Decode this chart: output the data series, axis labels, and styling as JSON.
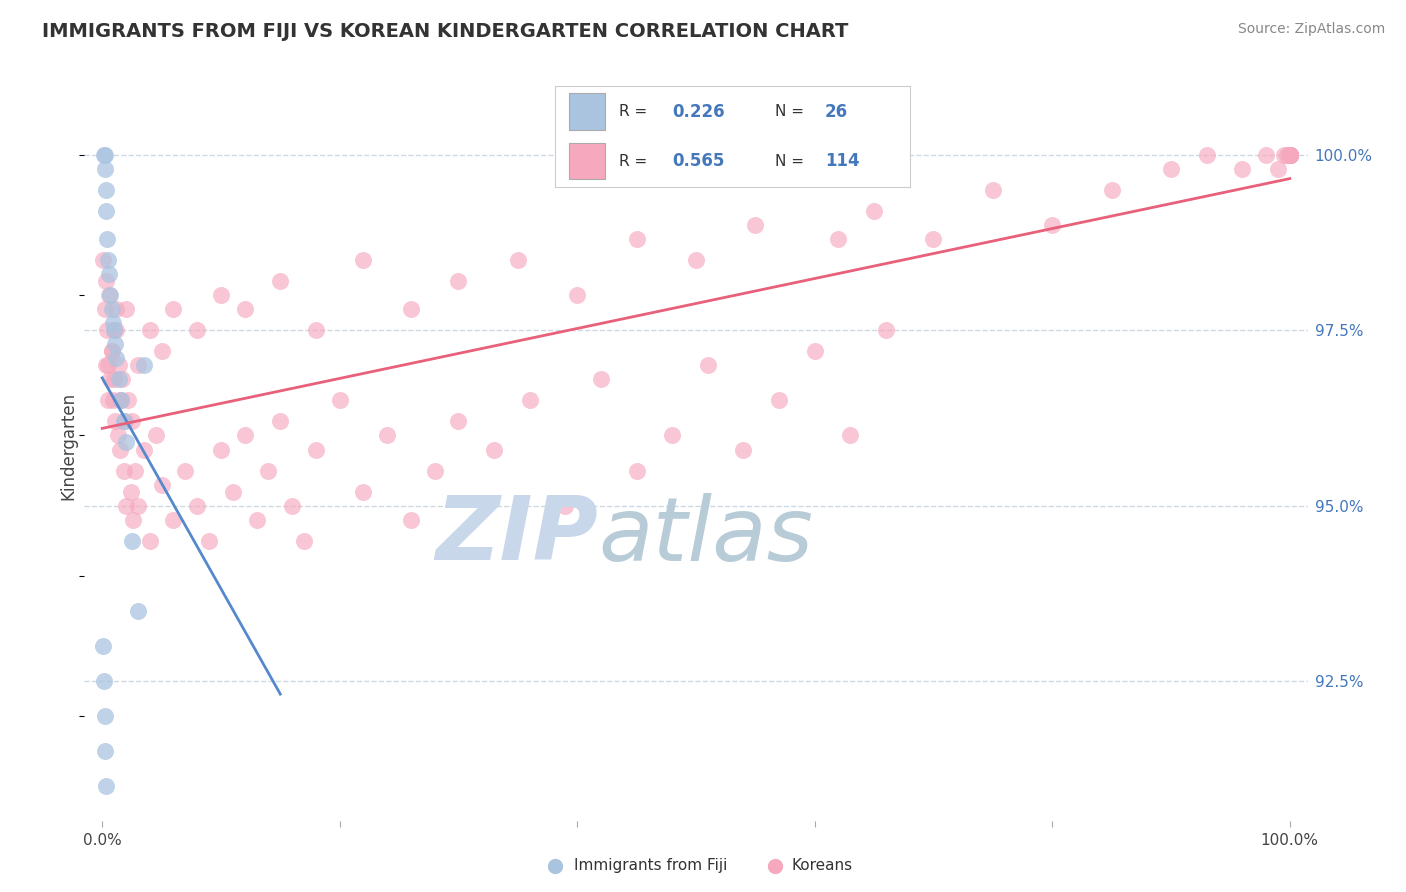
{
  "title": "IMMIGRANTS FROM FIJI VS KOREAN KINDERGARTEN CORRELATION CHART",
  "source_text": "Source: ZipAtlas.com",
  "ylabel": "Kindergarten",
  "xlim": [
    -1.5,
    101.5
  ],
  "ylim": [
    90.5,
    101.2
  ],
  "right_yticks": [
    92.5,
    95.0,
    97.5,
    100.0
  ],
  "fiji_R": 0.226,
  "fiji_N": 26,
  "korean_R": 0.565,
  "korean_N": 114,
  "fiji_color": "#aac4e0",
  "korean_color": "#f5a8be",
  "fiji_line_color": "#5588cc",
  "korean_line_color": "#e8607a",
  "dashed_color": "#c8d4e0",
  "background_color": "#ffffff",
  "watermark_zip": "ZIP",
  "watermark_atlas": "atlas",
  "watermark_color_zip": "#c8d8ea",
  "watermark_color_atlas": "#b8ccd8",
  "legend_color": "#4477bb",
  "fiji_x": [
    0.15,
    0.2,
    0.25,
    0.3,
    0.35,
    0.4,
    0.5,
    0.6,
    0.7,
    0.8,
    0.9,
    1.0,
    1.1,
    1.2,
    1.4,
    1.6,
    1.8,
    2.0,
    2.5,
    3.0,
    0.1,
    0.15,
    0.2,
    0.25,
    0.3,
    3.5
  ],
  "fiji_y": [
    100.0,
    100.0,
    99.8,
    99.5,
    99.2,
    98.8,
    98.5,
    98.3,
    98.0,
    97.8,
    97.6,
    97.5,
    97.3,
    97.1,
    96.8,
    96.5,
    96.2,
    95.9,
    94.5,
    93.5,
    93.0,
    92.5,
    92.0,
    91.5,
    91.0,
    97.0
  ],
  "korean_x": [
    0.1,
    0.2,
    0.3,
    0.4,
    0.5,
    0.6,
    0.7,
    0.8,
    0.9,
    1.0,
    1.1,
    1.2,
    1.3,
    1.4,
    1.5,
    1.6,
    1.7,
    1.8,
    1.9,
    2.0,
    2.2,
    2.4,
    2.6,
    2.8,
    3.0,
    3.5,
    4.0,
    4.5,
    5.0,
    6.0,
    7.0,
    8.0,
    9.0,
    10.0,
    11.0,
    12.0,
    13.0,
    14.0,
    15.0,
    16.0,
    17.0,
    18.0,
    20.0,
    22.0,
    24.0,
    26.0,
    28.0,
    30.0,
    33.0,
    36.0,
    39.0,
    42.0,
    45.0,
    48.0,
    51.0,
    54.0,
    57.0,
    60.0,
    63.0,
    66.0,
    0.3,
    0.5,
    0.8,
    1.0,
    1.2,
    1.5,
    2.0,
    2.5,
    3.0,
    4.0,
    5.0,
    6.0,
    8.0,
    10.0,
    12.0,
    15.0,
    18.0,
    22.0,
    26.0,
    30.0,
    35.0,
    40.0,
    45.0,
    50.0,
    55.0,
    62.0,
    65.0,
    70.0,
    75.0,
    80.0,
    85.0,
    90.0,
    93.0,
    96.0,
    98.0,
    99.0,
    99.5,
    99.8,
    100.0,
    100.0,
    100.0,
    100.0,
    100.0,
    100.0,
    100.0,
    100.0,
    100.0,
    100.0,
    100.0,
    100.0,
    100.0,
    100.0,
    100.0,
    100.0
  ],
  "korean_y": [
    98.5,
    97.8,
    98.2,
    97.5,
    97.0,
    98.0,
    96.8,
    97.2,
    96.5,
    97.5,
    96.2,
    97.8,
    96.0,
    97.0,
    95.8,
    96.5,
    96.8,
    95.5,
    96.2,
    95.0,
    96.5,
    95.2,
    94.8,
    95.5,
    95.0,
    95.8,
    94.5,
    96.0,
    95.3,
    94.8,
    95.5,
    95.0,
    94.5,
    95.8,
    95.2,
    96.0,
    94.8,
    95.5,
    96.2,
    95.0,
    94.5,
    95.8,
    96.5,
    95.2,
    96.0,
    94.8,
    95.5,
    96.2,
    95.8,
    96.5,
    95.0,
    96.8,
    95.5,
    96.0,
    97.0,
    95.8,
    96.5,
    97.2,
    96.0,
    97.5,
    97.0,
    96.5,
    97.2,
    96.8,
    97.5,
    96.5,
    97.8,
    96.2,
    97.0,
    97.5,
    97.2,
    97.8,
    97.5,
    98.0,
    97.8,
    98.2,
    97.5,
    98.5,
    97.8,
    98.2,
    98.5,
    98.0,
    98.8,
    98.5,
    99.0,
    98.8,
    99.2,
    98.8,
    99.5,
    99.0,
    99.5,
    99.8,
    100.0,
    99.8,
    100.0,
    99.8,
    100.0,
    100.0,
    100.0,
    100.0,
    100.0,
    100.0,
    100.0,
    100.0,
    100.0,
    100.0,
    100.0,
    100.0,
    100.0,
    100.0,
    100.0,
    100.0,
    100.0,
    100.0
  ]
}
